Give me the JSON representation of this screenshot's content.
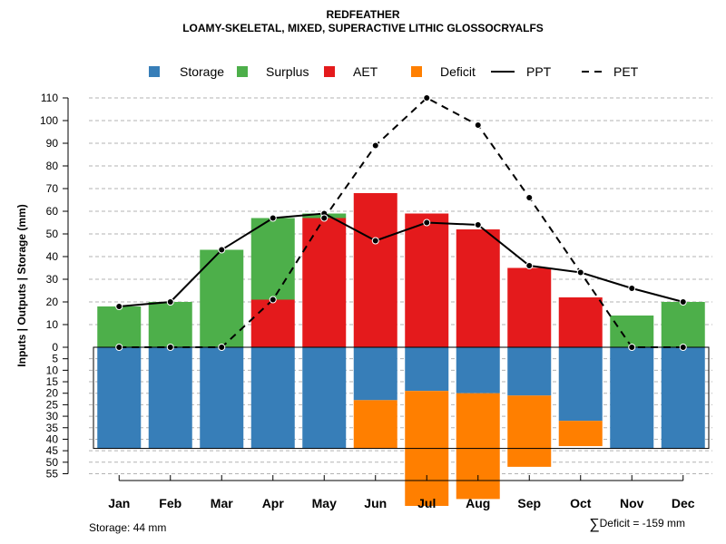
{
  "chart_data": {
    "type": "bar",
    "title": "REDFEATHER",
    "subtitle": "LOAMY-SKELETAL, MIXED, SUPERACTIVE LITHIC GLOSSOCRYALFS",
    "ylabel": "Inputs | Outputs | Storage    (mm)",
    "xlabel": "",
    "categories": [
      "Jan",
      "Feb",
      "Mar",
      "Apr",
      "May",
      "Jun",
      "Jul",
      "Aug",
      "Sep",
      "Oct",
      "Nov",
      "Dec"
    ],
    "upper_ylim": [
      0,
      110
    ],
    "upper_ticks": [
      "0",
      "10",
      "20",
      "30",
      "40",
      "50",
      "60",
      "70",
      "80",
      "90",
      "100",
      "110"
    ],
    "lower_ylim": [
      0,
      55
    ],
    "lower_ticks": [
      "5",
      "10",
      "15",
      "20",
      "25",
      "30",
      "35",
      "40",
      "45",
      "50",
      "55"
    ],
    "grid": true,
    "series": [
      {
        "name": "AET",
        "color": "#e41a1c",
        "values": [
          0,
          0,
          0,
          21,
          57,
          68,
          59,
          52,
          35,
          22,
          0,
          0
        ]
      },
      {
        "name": "Surplus",
        "color": "#4daf4a",
        "values": [
          18,
          20,
          43,
          36,
          2,
          0,
          0,
          0,
          0,
          0,
          14,
          20
        ]
      },
      {
        "name": "Storage",
        "color": "#377eb8",
        "values": [
          44,
          44,
          44,
          44,
          44,
          23,
          19,
          20,
          21,
          32,
          44,
          44
        ]
      },
      {
        "name": "Deficit",
        "color": "#ff7f00",
        "values": [
          0,
          0,
          0,
          0,
          0,
          21,
          50,
          46,
          31,
          11,
          0,
          0
        ]
      },
      {
        "name": "PPT",
        "color": "#000000",
        "style": "solid",
        "values": [
          18,
          20,
          43,
          57,
          59,
          47,
          55,
          54,
          36,
          33,
          26,
          20
        ]
      },
      {
        "name": "PET",
        "color": "#000000",
        "style": "dashed",
        "values": [
          0,
          0,
          0,
          21,
          57,
          89,
          110,
          98,
          66,
          33,
          0,
          0
        ]
      }
    ],
    "storage_capacity": 44,
    "legend": {
      "position": "top",
      "items": [
        {
          "label": "Storage",
          "color": "#377eb8",
          "kind": "box"
        },
        {
          "label": "Surplus",
          "color": "#4daf4a",
          "kind": "box"
        },
        {
          "label": "AET",
          "color": "#e41a1c",
          "kind": "box"
        },
        {
          "label": "Deficit",
          "color": "#ff7f00",
          "kind": "box"
        },
        {
          "label": "PPT",
          "color": "#000000",
          "kind": "solid"
        },
        {
          "label": "PET",
          "color": "#000000",
          "kind": "dashed"
        }
      ]
    }
  },
  "footer": {
    "storage_text": "Storage: 44 mm",
    "deficit_symbol": "∑",
    "deficit_text": "Deficit = -159 mm"
  }
}
